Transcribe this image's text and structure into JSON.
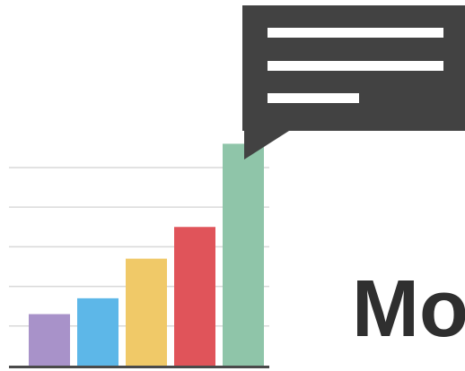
{
  "heading": "Mo",
  "icons": {
    "speech_bubble": "speech-bubble-icon",
    "text_lines": "text-lines-icon"
  },
  "colors": {
    "bubble": "#424242",
    "bubble_lines": "#ffffff",
    "gridline": "#d9d9d9",
    "baseline": "#4a4a4a",
    "heading": "#2f2f2f"
  },
  "chart_data": {
    "type": "bar",
    "categories": [
      "",
      "",
      "",
      "",
      ""
    ],
    "values": [
      13,
      17,
      27,
      35,
      56
    ],
    "colors": [
      "#a892c9",
      "#5db7e8",
      "#f0c968",
      "#e0545a",
      "#8fc5a9"
    ],
    "ylim": [
      0,
      57
    ],
    "gridlines": [
      10,
      20,
      30,
      40,
      50
    ],
    "grid": true,
    "title": "",
    "xlabel": "",
    "ylabel": ""
  }
}
